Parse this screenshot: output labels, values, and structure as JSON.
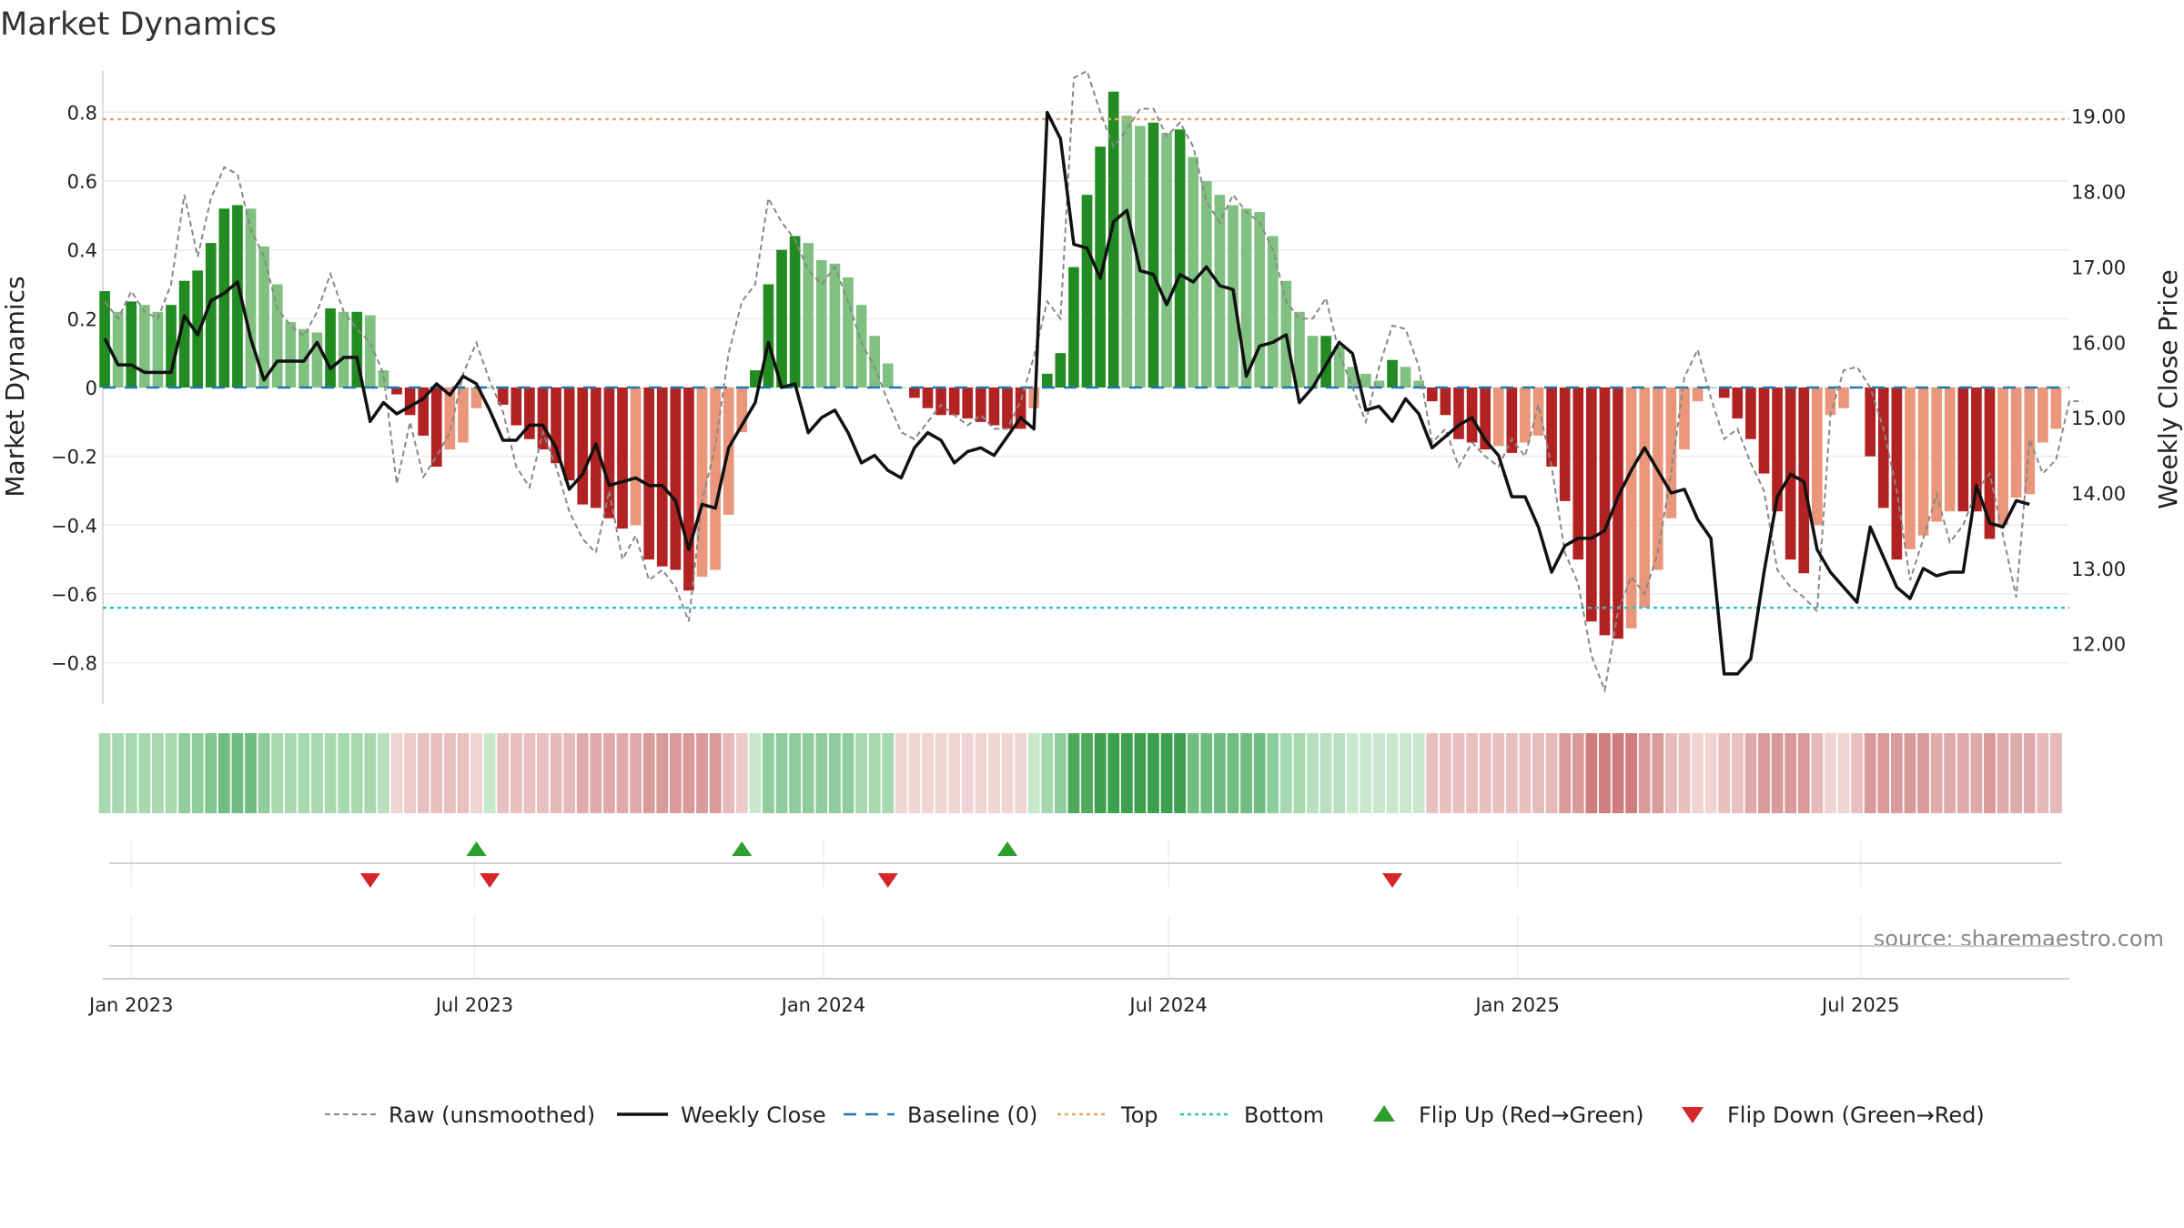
{
  "chart_data": {
    "type": "bar",
    "title": "Market Dynamics",
    "ylabel_left": "Market Dynamics",
    "ylabel_right": "Weekly Close Price",
    "source": "source: sharemaestro.com",
    "ylim_left": [
      -0.92,
      0.92
    ],
    "ylim_right": [
      11.2,
      19.6
    ],
    "left_ticks": [
      {
        "v": 0.8,
        "label": "0.8"
      },
      {
        "v": 0.6,
        "label": "0.6"
      },
      {
        "v": 0.4,
        "label": "0.4"
      },
      {
        "v": 0.2,
        "label": "0.2"
      },
      {
        "v": 0,
        "label": "0"
      },
      {
        "v": -0.2,
        "label": "−0.2"
      },
      {
        "v": -0.4,
        "label": "−0.4"
      },
      {
        "v": -0.6,
        "label": "−0.6"
      },
      {
        "v": -0.8,
        "label": "−0.8"
      }
    ],
    "right_ticks": [
      {
        "v": 19,
        "label": "19.00"
      },
      {
        "v": 18,
        "label": "18.00"
      },
      {
        "v": 17,
        "label": "17.00"
      },
      {
        "v": 16,
        "label": "16.00"
      },
      {
        "v": 15,
        "label": "15.00"
      },
      {
        "v": 14,
        "label": "14.00"
      },
      {
        "v": 13,
        "label": "13.00"
      },
      {
        "v": 12,
        "label": "12.00"
      }
    ],
    "x_ticks": [
      {
        "date": "2023-01-01",
        "label": "Jan 2023"
      },
      {
        "date": "2023-07-01",
        "label": "Jul 2023"
      },
      {
        "date": "2024-01-01",
        "label": "Jan 2024"
      },
      {
        "date": "2024-07-01",
        "label": "Jul 2024"
      },
      {
        "date": "2025-01-01",
        "label": "Jan 2025"
      },
      {
        "date": "2025-07-01",
        "label": "Jul 2025"
      }
    ],
    "x_range": [
      "2022-12-17",
      "2025-10-19"
    ],
    "first_week": "2022-12-18",
    "top_line": 0.78,
    "bottom_line": -0.64,
    "bars": [
      0.28,
      0.22,
      0.25,
      0.24,
      0.22,
      0.24,
      0.31,
      0.34,
      0.42,
      0.52,
      0.53,
      0.52,
      0.41,
      0.3,
      0.19,
      0.17,
      0.16,
      0.23,
      0.22,
      0.22,
      0.21,
      0.05,
      -0.02,
      -0.08,
      -0.14,
      -0.23,
      -0.18,
      -0.16,
      -0.06,
      0.0,
      -0.05,
      -0.11,
      -0.15,
      -0.18,
      -0.22,
      -0.27,
      -0.34,
      -0.35,
      -0.38,
      -0.41,
      -0.4,
      -0.5,
      -0.52,
      -0.53,
      -0.59,
      -0.55,
      -0.53,
      -0.37,
      -0.13,
      0.05,
      0.3,
      0.4,
      0.44,
      0.42,
      0.37,
      0.36,
      0.32,
      0.24,
      0.15,
      0.07,
      0.0,
      -0.03,
      -0.06,
      -0.08,
      -0.08,
      -0.09,
      -0.1,
      -0.11,
      -0.12,
      -0.12,
      -0.06,
      0.04,
      0.1,
      0.35,
      0.56,
      0.7,
      0.86,
      0.79,
      0.76,
      0.77,
      0.74,
      0.75,
      0.67,
      0.6,
      0.56,
      0.53,
      0.52,
      0.51,
      0.44,
      0.31,
      0.22,
      0.15,
      0.15,
      0.12,
      0.06,
      0.04,
      0.02,
      0.08,
      0.06,
      0.02,
      -0.04,
      -0.08,
      -0.15,
      -0.16,
      -0.18,
      -0.17,
      -0.19,
      -0.16,
      -0.14,
      -0.23,
      -0.33,
      -0.5,
      -0.68,
      -0.72,
      -0.73,
      -0.7,
      -0.64,
      -0.53,
      -0.38,
      -0.18,
      -0.04,
      0.0,
      -0.03,
      -0.09,
      -0.15,
      -0.25,
      -0.36,
      -0.5,
      -0.54,
      -0.4,
      -0.08,
      -0.06,
      0.0,
      -0.2,
      -0.35,
      -0.5,
      -0.47,
      -0.43,
      -0.39,
      -0.36,
      -0.36,
      -0.36,
      -0.44,
      -0.4,
      -0.32,
      -0.31,
      -0.16,
      -0.12
    ],
    "raw_series": [
      0.25,
      0.2,
      0.28,
      0.22,
      0.2,
      0.3,
      0.56,
      0.38,
      0.55,
      0.64,
      0.62,
      0.46,
      0.38,
      0.23,
      0.18,
      0.15,
      0.22,
      0.33,
      0.22,
      0.17,
      0.13,
      0.04,
      -0.28,
      -0.1,
      -0.26,
      -0.2,
      -0.13,
      0.04,
      0.13,
      0.02,
      -0.07,
      -0.23,
      -0.29,
      -0.13,
      -0.23,
      -0.36,
      -0.44,
      -0.48,
      -0.3,
      -0.5,
      -0.43,
      -0.56,
      -0.53,
      -0.58,
      -0.68,
      -0.33,
      -0.17,
      0.1,
      0.25,
      0.3,
      0.55,
      0.48,
      0.43,
      0.34,
      0.3,
      0.35,
      0.25,
      0.13,
      0.06,
      -0.04,
      -0.13,
      -0.15,
      -0.1,
      -0.05,
      -0.08,
      -0.11,
      -0.08,
      -0.12,
      -0.12,
      -0.04,
      0.09,
      0.25,
      0.2,
      0.9,
      0.92,
      0.8,
      0.7,
      0.75,
      0.81,
      0.81,
      0.73,
      0.77,
      0.7,
      0.54,
      0.48,
      0.56,
      0.51,
      0.48,
      0.4,
      0.25,
      0.2,
      0.2,
      0.26,
      0.1,
      0.0,
      -0.1,
      0.06,
      0.18,
      0.17,
      0.06,
      -0.16,
      -0.12,
      -0.23,
      -0.16,
      -0.2,
      -0.23,
      -0.15,
      -0.2,
      -0.05,
      -0.23,
      -0.48,
      -0.57,
      -0.78,
      -0.88,
      -0.65,
      -0.55,
      -0.6,
      -0.48,
      -0.25,
      0.03,
      0.11,
      -0.03,
      -0.15,
      -0.12,
      -0.22,
      -0.3,
      -0.53,
      -0.58,
      -0.61,
      -0.65,
      -0.08,
      0.05,
      0.06,
      0.0,
      -0.12,
      -0.3,
      -0.56,
      -0.44,
      -0.31,
      -0.45,
      -0.4,
      -0.3,
      -0.25,
      -0.43,
      -0.61,
      -0.15,
      -0.25,
      -0.21,
      -0.04,
      -0.04
    ],
    "close_series": [
      16.05,
      15.7,
      15.7,
      15.6,
      15.6,
      15.6,
      16.35,
      16.1,
      16.55,
      16.65,
      16.8,
      16.05,
      15.5,
      15.75,
      15.75,
      15.75,
      16.0,
      15.65,
      15.8,
      15.8,
      14.95,
      15.2,
      15.05,
      15.15,
      15.25,
      15.45,
      15.3,
      15.55,
      15.45,
      15.1,
      14.7,
      14.7,
      14.9,
      14.9,
      14.6,
      14.05,
      14.25,
      14.65,
      14.1,
      14.15,
      14.2,
      14.1,
      14.1,
      13.9,
      13.25,
      13.85,
      13.8,
      14.6,
      14.9,
      15.2,
      16.0,
      15.4,
      15.45,
      14.8,
      15.0,
      15.1,
      14.8,
      14.4,
      14.5,
      14.3,
      14.2,
      14.6,
      14.8,
      14.7,
      14.4,
      14.55,
      14.6,
      14.5,
      14.75,
      15.0,
      14.85,
      19.05,
      18.7,
      17.3,
      17.25,
      16.85,
      17.6,
      17.75,
      16.95,
      16.9,
      16.5,
      16.9,
      16.8,
      17.0,
      16.75,
      16.7,
      15.55,
      15.95,
      16.0,
      16.1,
      15.2,
      15.4,
      15.7,
      16.0,
      15.85,
      15.1,
      15.15,
      14.95,
      15.25,
      15.05,
      14.6,
      14.75,
      14.9,
      15.0,
      14.7,
      14.5,
      13.95,
      13.95,
      13.55,
      12.95,
      13.3,
      13.4,
      13.4,
      13.5,
      13.95,
      14.3,
      14.6,
      14.3,
      14.0,
      14.05,
      13.65,
      13.4,
      11.6,
      11.6,
      11.8,
      12.95,
      13.95,
      14.25,
      14.15,
      13.25,
      12.95,
      12.75,
      12.55,
      13.55,
      13.15,
      12.75,
      12.6,
      13.0,
      12.9,
      12.95,
      12.95,
      14.1,
      13.6,
      13.55,
      13.9,
      13.85
    ],
    "band_colors": [
      "#a6d9b0",
      "#a6d9b0",
      "#a6d9b0",
      "#a6d9b0",
      "#a6d9b0",
      "#a6d9b0",
      "#8fcd9c",
      "#8fcd9c",
      "#7fc58e",
      "#70bd81",
      "#70bd81",
      "#70bd81",
      "#8fcd9c",
      "#a6d9b0",
      "#a6d9b0",
      "#a6d9b0",
      "#a6d9b0",
      "#a6d9b0",
      "#a6d9b0",
      "#a6d9b0",
      "#a6d9b0",
      "#b8e0c0",
      "#f0d4d4",
      "#eccaca",
      "#e9c0c0",
      "#e9c0c0",
      "#e9c0c0",
      "#e9c0c0",
      "#f0d4d4",
      "#c8e8ce",
      "#e9c0c0",
      "#e9c0c0",
      "#e9c0c0",
      "#e9c0c0",
      "#e6baba",
      "#e6baba",
      "#e0aaaa",
      "#e0aaaa",
      "#e0aaaa",
      "#e0aaaa",
      "#e0aaaa",
      "#d99a9a",
      "#d99a9a",
      "#d99a9a",
      "#d99a9a",
      "#d99a9a",
      "#d99a9a",
      "#e6baba",
      "#eccaca",
      "#c8e8ce",
      "#8fcd9c",
      "#8fcd9c",
      "#8fcd9c",
      "#8fcd9c",
      "#8fcd9c",
      "#8fcd9c",
      "#8fcd9c",
      "#a6d9b0",
      "#a6d9b0",
      "#a6d9b0",
      "#f0d4d4",
      "#f0d4d4",
      "#f0d4d4",
      "#f0d4d4",
      "#f0d4d4",
      "#f0d4d4",
      "#f0d4d4",
      "#f0d4d4",
      "#f0d4d4",
      "#f0d4d4",
      "#c8e8ce",
      "#a6d9b0",
      "#8fcd9c",
      "#4faa5e",
      "#4faa5e",
      "#3da050",
      "#3da050",
      "#3da050",
      "#3da050",
      "#3da050",
      "#3da050",
      "#3da050",
      "#70bd81",
      "#70bd81",
      "#70bd81",
      "#70bd81",
      "#70bd81",
      "#70bd81",
      "#8fcd9c",
      "#a6d9b0",
      "#a6d9b0",
      "#b8e0c0",
      "#b8e0c0",
      "#b8e0c0",
      "#c8e8ce",
      "#c8e8ce",
      "#c8e8ce",
      "#c8e8ce",
      "#c8e8ce",
      "#c8e8ce",
      "#e9c0c0",
      "#e9c0c0",
      "#e9c0c0",
      "#e9c0c0",
      "#e9c0c0",
      "#e9c0c0",
      "#e9c0c0",
      "#e9c0c0",
      "#e6baba",
      "#e6baba",
      "#d99a9a",
      "#d99a9a",
      "#cf7e7e",
      "#cf7e7e",
      "#cf7e7e",
      "#cf7e7e",
      "#d99a9a",
      "#d99a9a",
      "#e6baba",
      "#e9c0c0",
      "#f0d4d4",
      "#f0d4d4",
      "#e9c0c0",
      "#e9c0c0",
      "#e0aaaa",
      "#d99a9a",
      "#d99a9a",
      "#d99a9a",
      "#d99a9a",
      "#e6baba",
      "#f0d4d4",
      "#f0d4d4",
      "#e9c0c0",
      "#d99a9a",
      "#d99a9a",
      "#d99a9a",
      "#d99a9a",
      "#d99a9a",
      "#e0aaaa",
      "#e0aaaa",
      "#e0aaaa",
      "#e0aaaa",
      "#d99a9a",
      "#e0aaaa",
      "#e0aaaa",
      "#e0aaaa",
      "#e6baba",
      "#e6baba"
    ],
    "flips_up": [
      "2023-07-02",
      "2023-11-19",
      "2024-04-07"
    ],
    "flips_down": [
      "2023-05-07",
      "2023-07-09",
      "2024-02-04",
      "2024-10-27"
    ],
    "colors": {
      "strong_green": "#228b22",
      "light_green": "#80c080",
      "strong_red": "#b22222",
      "light_red": "#e9967a",
      "raw_line": "#888888",
      "close_line": "#111111",
      "baseline": "#1f77b4",
      "top": "#e3a768",
      "bottom": "#30c0c8",
      "flip_up": "#2ca02c",
      "flip_down": "#d62728"
    },
    "legend": [
      {
        "label": "Raw (unsmoothed)",
        "kind": "raw"
      },
      {
        "label": "Weekly Close",
        "kind": "close"
      },
      {
        "label": "Baseline (0)",
        "kind": "baseline"
      },
      {
        "label": "Top",
        "kind": "top"
      },
      {
        "label": "Bottom",
        "kind": "bottom"
      },
      {
        "label": "Flip Up (Red→Green)",
        "kind": "flip_up"
      },
      {
        "label": "Flip Down (Green→Red)",
        "kind": "flip_down"
      }
    ]
  }
}
